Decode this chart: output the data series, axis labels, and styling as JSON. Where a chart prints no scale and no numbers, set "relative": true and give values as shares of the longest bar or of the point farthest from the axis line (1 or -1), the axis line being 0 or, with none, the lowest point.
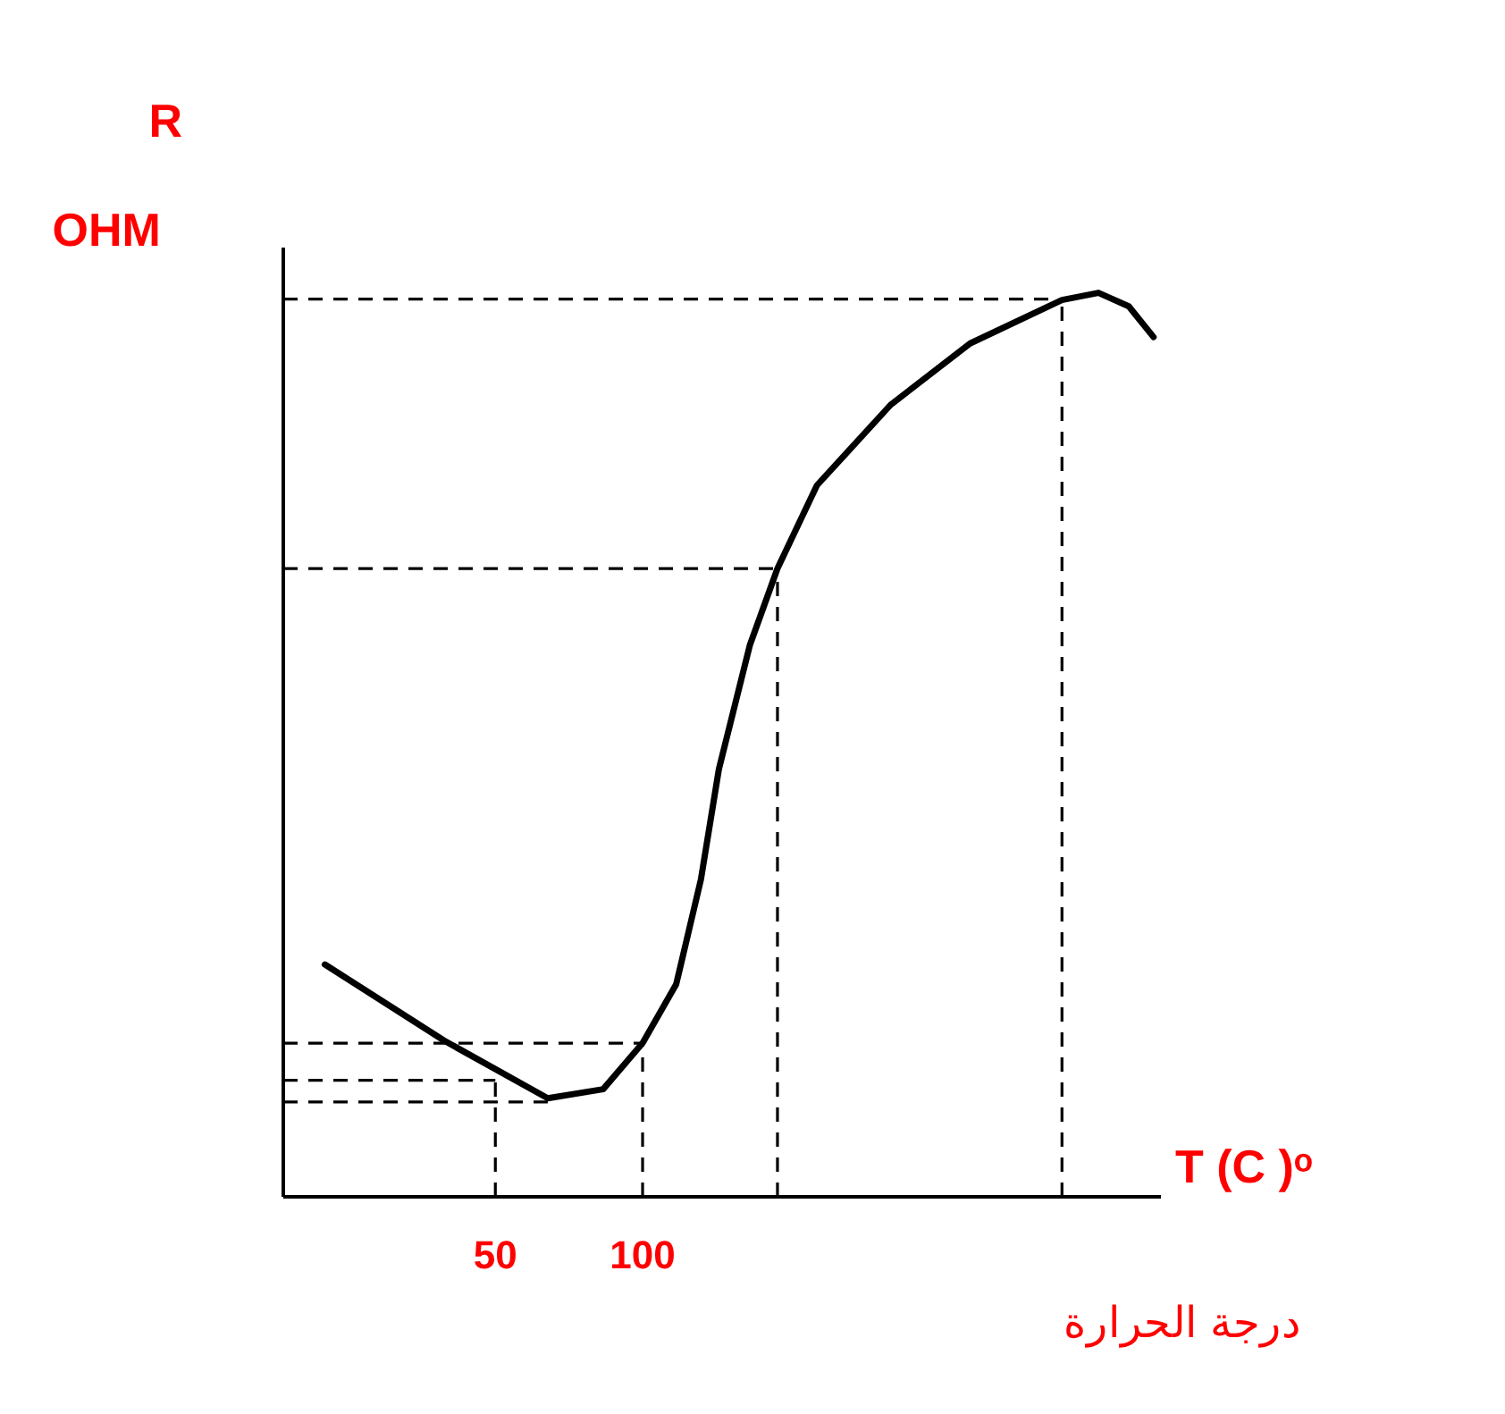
{
  "chart_data": {
    "type": "line",
    "relative": true,
    "xlabel": "T (C )ᵒ",
    "ylabel": "R OHM",
    "annotations": [
      "درجة الحرارة"
    ],
    "x": [
      -7.9,
      32.5,
      67.8,
      86.6,
      100,
      111.4,
      119.8,
      125.9,
      136.4,
      145.8,
      159.2,
      184.2,
      211.2,
      242.4,
      254.8,
      265.1,
      273.5
    ],
    "series": [
      {
        "color": "#000000",
        "values": [
          0.257,
          0.173,
          0.109,
          0.119,
          0.17,
          0.235,
          0.351,
          0.473,
          0.61,
          0.695,
          0.787,
          0.876,
          0.944,
          0.992,
          1.0,
          0.985,
          0.951
        ]
      }
    ],
    "xlim": [
      -22,
      276
    ],
    "xticks": [
      50,
      100
    ],
    "ref_lines": [
      {
        "axis": "x",
        "value": 50,
        "line_style": "dashed"
      },
      {
        "axis": "x",
        "value": 100,
        "line_style": "dashed"
      },
      {
        "axis": "x",
        "value": 145.8,
        "line_style": "dashed"
      },
      {
        "axis": "x",
        "value": 242.4,
        "line_style": "dashed"
      },
      {
        "axis": "y",
        "value": 0.993,
        "line_style": "dashed"
      },
      {
        "axis": "y",
        "value": 0.695,
        "line_style": "dashed"
      },
      {
        "axis": "y",
        "value": 0.17,
        "line_style": "dashed"
      },
      {
        "axis": "y",
        "value": 0.129,
        "line_style": "dashed"
      },
      {
        "axis": "y",
        "value": 0.105,
        "line_style": "dashed"
      }
    ],
    "marker": "none",
    "line_style": "solid"
  }
}
